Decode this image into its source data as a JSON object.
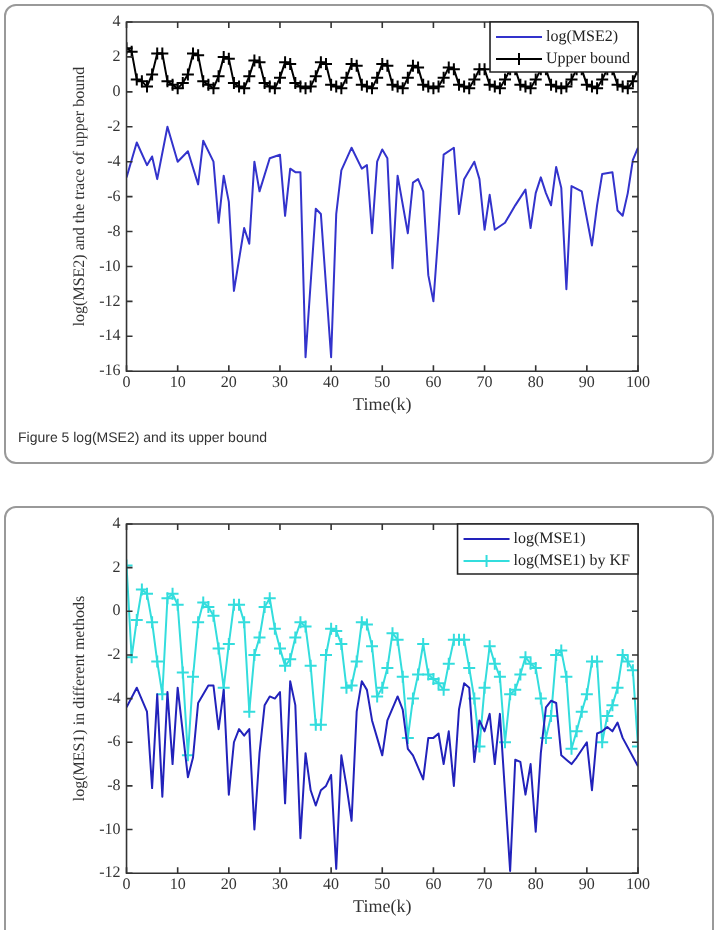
{
  "chart_data": [
    {
      "type": "line",
      "xlabel": "Time(k)",
      "ylabel": "log(MSE2) and the trace of upper bound",
      "annotations": [
        "Figure 5 log(MSE2) and its upper bound"
      ],
      "legend": "top right",
      "xlim": [
        0,
        100
      ],
      "xticks": [
        0,
        10,
        20,
        30,
        40,
        50,
        60,
        70,
        80,
        90,
        100
      ],
      "ylim": [
        -16,
        4
      ],
      "yticks": [
        -16,
        -14,
        -12,
        -10,
        -8,
        -6,
        -4,
        -2,
        0,
        2,
        4
      ],
      "series": [
        {
          "name": "log(MSE2)",
          "color": "#3333cc",
          "marker": "none",
          "x": [
            0,
            2,
            4,
            5,
            6,
            8,
            10,
            12,
            14,
            15,
            17,
            18,
            19,
            20,
            21,
            23,
            24,
            25,
            26,
            28,
            30,
            31,
            32,
            33,
            34,
            35,
            37,
            38,
            40,
            41,
            42,
            44,
            46,
            47,
            48,
            49,
            50,
            51,
            52,
            53,
            55,
            56,
            57,
            58,
            59,
            60,
            61,
            62,
            64,
            65,
            66,
            68,
            69,
            70,
            71,
            72,
            74,
            76,
            78,
            79,
            80,
            81,
            82,
            83,
            84,
            85,
            86,
            87,
            89,
            91,
            92,
            93,
            95,
            96,
            97,
            98,
            99,
            100
          ],
          "values": [
            -4.9,
            -2.9,
            -4.2,
            -3.7,
            -5.0,
            -2.0,
            -4.0,
            -3.4,
            -5.3,
            -2.8,
            -4.0,
            -7.5,
            -4.8,
            -6.3,
            -11.4,
            -7.8,
            -8.7,
            -4.0,
            -5.7,
            -3.8,
            -3.6,
            -7.1,
            -4.4,
            -4.6,
            -4.6,
            -15.2,
            -6.7,
            -7.0,
            -15.2,
            -7.0,
            -4.5,
            -3.2,
            -4.4,
            -4.2,
            -8.1,
            -4.0,
            -3.3,
            -3.8,
            -10.1,
            -4.8,
            -8.1,
            -5.2,
            -5.0,
            -5.7,
            -10.5,
            -12.0,
            -8.0,
            -3.6,
            -3.2,
            -7.0,
            -5.0,
            -4.0,
            -5.0,
            -7.9,
            -5.9,
            -7.9,
            -7.5,
            -6.5,
            -5.6,
            -7.8,
            -5.8,
            -4.9,
            -5.8,
            -6.5,
            -4.3,
            -5.5,
            -11.3,
            -5.4,
            -5.7,
            -8.8,
            -6.5,
            -4.7,
            -4.6,
            -6.8,
            -7.1,
            -5.8,
            -3.9,
            -3.2
          ]
        },
        {
          "name": "Upper bound",
          "color": "#000000",
          "marker": "cross",
          "x": [
            0,
            1,
            2,
            3,
            4,
            5,
            6,
            7,
            8,
            9,
            10,
            11,
            12,
            13,
            14,
            15,
            16,
            17,
            18,
            19,
            20,
            21,
            22,
            23,
            24,
            25,
            26,
            27,
            28,
            29,
            30,
            31,
            32,
            33,
            34,
            35,
            36,
            37,
            38,
            39,
            40,
            41,
            42,
            43,
            44,
            45,
            46,
            47,
            48,
            49,
            50,
            51,
            52,
            53,
            54,
            55,
            56,
            57,
            58,
            59,
            60,
            61,
            62,
            63,
            64,
            65,
            66,
            67,
            68,
            69,
            70,
            71,
            72,
            73,
            74,
            75,
            76,
            77,
            78,
            79,
            80,
            81,
            82,
            83,
            84,
            85,
            86,
            87,
            88,
            89,
            90,
            91,
            92,
            93,
            94,
            95,
            96,
            97,
            98,
            99,
            100
          ],
          "values": [
            2.5,
            2.3,
            0.7,
            0.6,
            0.3,
            1.0,
            2.2,
            2.2,
            0.6,
            0.4,
            0.2,
            0.5,
            1.0,
            2.2,
            2.1,
            0.6,
            0.4,
            0.2,
            0.9,
            2.0,
            1.9,
            0.5,
            0.3,
            0.2,
            0.9,
            1.8,
            1.7,
            0.5,
            0.3,
            0.2,
            0.8,
            1.7,
            1.6,
            0.5,
            0.3,
            0.2,
            0.3,
            0.9,
            1.7,
            1.6,
            0.4,
            0.3,
            0.2,
            0.8,
            1.6,
            1.5,
            0.4,
            0.3,
            0.2,
            0.8,
            1.6,
            1.5,
            0.4,
            0.3,
            0.2,
            0.8,
            1.5,
            1.4,
            0.4,
            0.3,
            0.2,
            0.3,
            0.8,
            1.4,
            1.3,
            0.4,
            0.3,
            0.2,
            0.7,
            1.3,
            1.3,
            0.4,
            0.3,
            0.2,
            0.7,
            1.3,
            1.3,
            0.4,
            0.3,
            0.2,
            0.7,
            1.3,
            1.3,
            0.4,
            0.3,
            0.2,
            0.3,
            0.7,
            1.3,
            1.3,
            0.4,
            0.3,
            0.2,
            0.7,
            1.3,
            1.3,
            0.4,
            0.3,
            0.2,
            0.6,
            1.3
          ]
        }
      ]
    },
    {
      "type": "line",
      "xlabel": "Time(k)",
      "ylabel": "log(MES1) in different methods",
      "legend": "top right",
      "xlim": [
        0,
        100
      ],
      "xticks": [
        0,
        10,
        20,
        30,
        40,
        50,
        60,
        70,
        80,
        90,
        100
      ],
      "ylim": [
        -12,
        4
      ],
      "yticks": [
        -12,
        -10,
        -8,
        -6,
        -4,
        -2,
        0,
        2,
        4
      ],
      "series": [
        {
          "name": "log(MSE1)",
          "color": "#2222bb",
          "marker": "none",
          "x": [
            0,
            2,
            4,
            5,
            6,
            7,
            8,
            9,
            10,
            12,
            13,
            14,
            16,
            17,
            18,
            19,
            20,
            21,
            22,
            23,
            24,
            25,
            26,
            27,
            28,
            29,
            30,
            31,
            32,
            33,
            34,
            35,
            36,
            37,
            38,
            39,
            40,
            41,
            42,
            43,
            44,
            45,
            46,
            47,
            48,
            49,
            50,
            51,
            53,
            54,
            55,
            56,
            58,
            59,
            60,
            61,
            62,
            63,
            64,
            65,
            66,
            67,
            68,
            69,
            70,
            71,
            72,
            73,
            75,
            76,
            77,
            78,
            79,
            80,
            81,
            82,
            83,
            84,
            85,
            86,
            87,
            88,
            90,
            91,
            92,
            93,
            94,
            95,
            96,
            97,
            100
          ],
          "values": [
            -4.4,
            -3.5,
            -4.6,
            -8.1,
            -3.8,
            -8.5,
            -3.7,
            -7.0,
            -3.5,
            -7.6,
            -6.7,
            -4.2,
            -3.4,
            -3.4,
            -5.4,
            -3.6,
            -8.4,
            -6.0,
            -5.4,
            -5.7,
            -5.4,
            -10.0,
            -6.5,
            -4.3,
            -3.9,
            -4.0,
            -3.7,
            -8.8,
            -3.2,
            -4.3,
            -10.4,
            -6.5,
            -8.2,
            -8.9,
            -8.2,
            -8.0,
            -7.5,
            -11.8,
            -6.6,
            -8.0,
            -9.6,
            -4.6,
            -3.2,
            -3.6,
            -5.0,
            -5.8,
            -6.6,
            -5.0,
            -3.9,
            -4.5,
            -6.3,
            -6.6,
            -7.7,
            -5.8,
            -5.8,
            -5.6,
            -7.0,
            -5.5,
            -8.0,
            -4.5,
            -3.3,
            -3.5,
            -6.9,
            -5.0,
            -5.5,
            -4.7,
            -7.0,
            -4.7,
            -11.9,
            -6.8,
            -6.9,
            -8.4,
            -7.0,
            -10.1,
            -6.5,
            -4.4,
            -4.1,
            -4.2,
            -6.6,
            -6.8,
            -7.0,
            -6.7,
            -6.0,
            -8.2,
            -5.6,
            -5.5,
            -5.3,
            -5.5,
            -5.1,
            -5.8,
            -7.1
          ]
        },
        {
          "name": "log(MSE1) by KF",
          "color": "#33dddd",
          "marker": "cross",
          "x": [
            0,
            1,
            2,
            3,
            4,
            5,
            6,
            7,
            8,
            9,
            10,
            11,
            12,
            13,
            14,
            15,
            16,
            17,
            18,
            19,
            20,
            21,
            22,
            23,
            24,
            25,
            26,
            27,
            28,
            29,
            30,
            31,
            32,
            33,
            34,
            35,
            36,
            37,
            38,
            39,
            40,
            41,
            42,
            43,
            44,
            45,
            46,
            47,
            48,
            49,
            50,
            51,
            52,
            53,
            54,
            55,
            56,
            57,
            58,
            59,
            60,
            61,
            62,
            63,
            64,
            65,
            66,
            67,
            68,
            69,
            70,
            71,
            72,
            73,
            74,
            75,
            76,
            77,
            78,
            79,
            80,
            81,
            82,
            83,
            84,
            85,
            86,
            87,
            88,
            89,
            90,
            91,
            92,
            93,
            94,
            95,
            96,
            97,
            98,
            99,
            100
          ],
          "values": [
            2.1,
            -2.1,
            -0.4,
            1.0,
            0.8,
            -0.5,
            -2.3,
            -3.8,
            0.6,
            0.8,
            0.3,
            -2.8,
            -6.6,
            -3.0,
            -0.5,
            0.4,
            0.2,
            -0.2,
            -1.7,
            -3.5,
            -1.5,
            0.3,
            0.3,
            -0.5,
            -4.6,
            -2.0,
            -1.2,
            0.2,
            0.6,
            -0.8,
            -1.7,
            -2.5,
            -2.2,
            -1.2,
            -0.5,
            -0.7,
            -2.5,
            -5.2,
            -5.2,
            -2.0,
            -0.8,
            -0.9,
            -1.5,
            -3.5,
            -3.4,
            -2.3,
            -0.5,
            -0.6,
            -1.6,
            -3.9,
            -3.5,
            -2.6,
            -1.0,
            -1.3,
            -3.0,
            -5.8,
            -4.0,
            -2.9,
            -1.5,
            -2.9,
            -3.1,
            -3.3,
            -3.6,
            -2.4,
            -1.3,
            -1.3,
            -1.3,
            -2.6,
            -4.0,
            -6.2,
            -3.5,
            -1.6,
            -2.4,
            -3.0,
            -6.0,
            -3.8,
            -3.6,
            -2.9,
            -2.1,
            -2.4,
            -2.6,
            -4.0,
            -5.8,
            -4.8,
            -2.0,
            -1.8,
            -3.0,
            -6.3,
            -5.5,
            -4.6,
            -3.8,
            -2.3,
            -2.3,
            -6.0,
            -4.8,
            -4.3,
            -3.5,
            -2.0,
            -2.3,
            -2.7,
            -6.2
          ]
        }
      ]
    }
  ]
}
